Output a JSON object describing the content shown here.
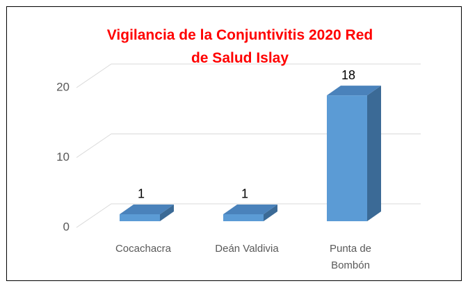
{
  "chart_data": {
    "type": "bar3d",
    "title": "Vigilancia de la Conjuntivitis 2020 Red de Salud Islay",
    "categories": [
      "Cocachacra",
      "Deán Valdivia",
      "Punta de Bombón"
    ],
    "values": [
      1,
      1,
      18
    ],
    "color": "#5b9bd5",
    "ylim": [
      0,
      20
    ],
    "yticks": [
      0,
      10,
      20
    ],
    "grid": true
  }
}
